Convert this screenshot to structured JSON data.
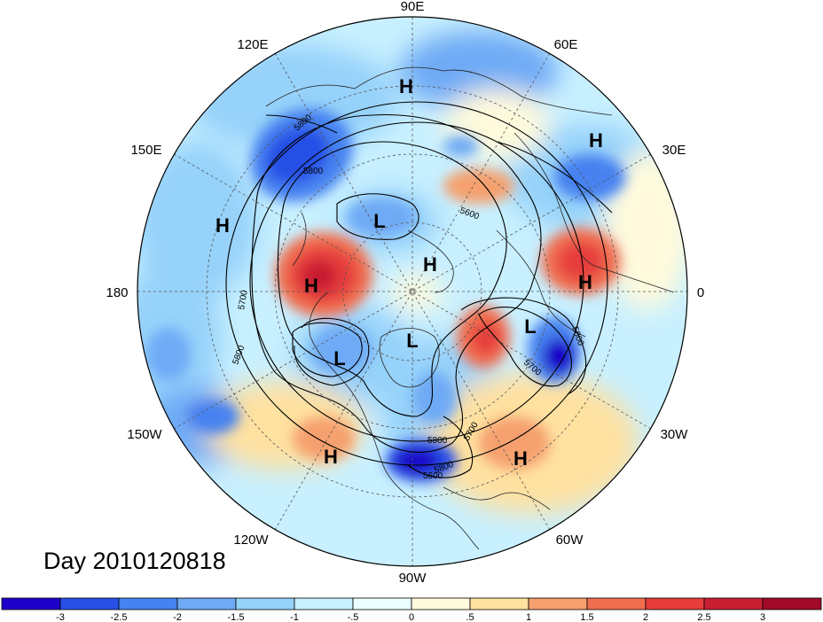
{
  "title": "Day 2010120818",
  "longitude_labels": {
    "lon_90e": "90E",
    "lon_60e": "60E",
    "lon_30e": "30E",
    "lon_0": "0",
    "lon_30w": "30W",
    "lon_60w": "60W",
    "lon_90w": "90W",
    "lon_120w": "120W",
    "lon_150w": "150W",
    "lon_180": "180",
    "lon_150e": "150E",
    "lon_120e": "120E"
  },
  "pressure_centers": [
    {
      "label": "H"
    },
    {
      "label": "H"
    },
    {
      "label": "H"
    },
    {
      "label": "L"
    },
    {
      "label": "H"
    },
    {
      "label": "H"
    },
    {
      "label": "H"
    },
    {
      "label": "L"
    },
    {
      "label": "L"
    },
    {
      "label": "L"
    },
    {
      "label": "H"
    },
    {
      "label": "H"
    }
  ],
  "contour_labels": [
    "5800",
    "5800",
    "5600",
    "5700",
    "5800",
    "5800",
    "5700",
    "5800",
    "5700",
    "5600",
    "5800"
  ],
  "colorbar": {
    "labels": [
      "-3",
      "-2.5",
      "-2",
      "-1.5",
      "-1",
      "-.5",
      "0",
      ".5",
      "1",
      "1.5",
      "2",
      "2.5",
      "3"
    ],
    "colors": [
      "#1e00c8",
      "#2850e6",
      "#4682f0",
      "#6eaaf5",
      "#96d2fa",
      "#c8f0ff",
      "#eaffff",
      "#fffadc",
      "#ffe1a0",
      "#f5a06e",
      "#f06e50",
      "#e63c3c",
      "#c81e32",
      "#a00a28"
    ]
  }
}
